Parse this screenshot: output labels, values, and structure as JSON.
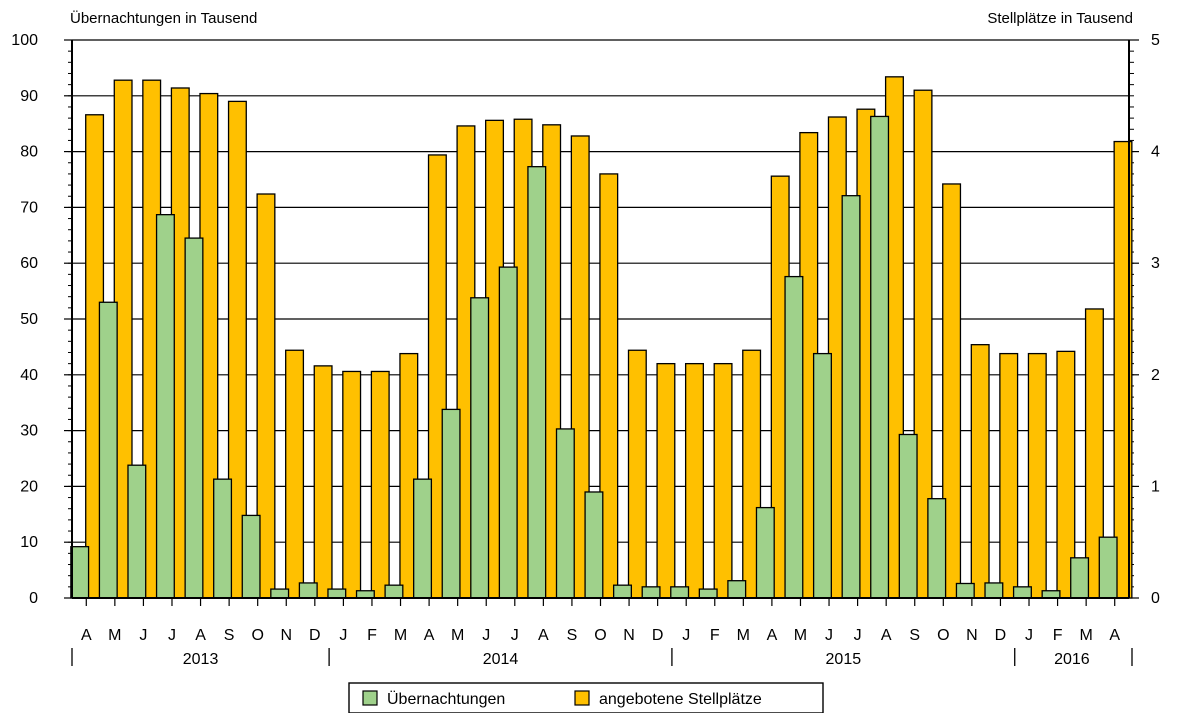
{
  "chart_data": {
    "type": "bar",
    "ylabel_left": "Übernachtungen in Tausend",
    "ylabel_right": "Stellplätze in Tausend",
    "ylim_left": [
      0,
      100
    ],
    "ylim_right": [
      0,
      5
    ],
    "yticks_left": [
      "0",
      "10",
      "20",
      "30",
      "40",
      "50",
      "60",
      "70",
      "80",
      "90",
      "100"
    ],
    "yticks_right": [
      "0",
      "1",
      "2",
      "3",
      "4",
      "5"
    ],
    "grid": true,
    "legend_position": "bottom-center",
    "categories": [
      "A",
      "M",
      "J",
      "J",
      "A",
      "S",
      "O",
      "N",
      "D",
      "J",
      "F",
      "M",
      "A",
      "M",
      "J",
      "J",
      "A",
      "S",
      "O",
      "N",
      "D",
      "J",
      "F",
      "M",
      "A",
      "M",
      "J",
      "J",
      "A",
      "S",
      "O",
      "N",
      "D",
      "J",
      "F",
      "M",
      "A"
    ],
    "years": [
      {
        "label": "2013",
        "start": 0,
        "end": 8
      },
      {
        "label": "2014",
        "start": 9,
        "end": 20
      },
      {
        "label": "2015",
        "start": 21,
        "end": 32
      },
      {
        "label": "2016",
        "start": 33,
        "end": 36
      }
    ],
    "series": [
      {
        "name": "Übernachtungen",
        "axis": "left",
        "color": "#9fd18b",
        "values": [
          9.2,
          53,
          23.8,
          68.7,
          64.5,
          21.3,
          14.8,
          1.6,
          2.7,
          1.6,
          1.3,
          2.3,
          21.3,
          33.8,
          53.8,
          59.3,
          77.3,
          30.3,
          19.0,
          2.3,
          2.0,
          2.0,
          1.6,
          3.1,
          16.2,
          57.6,
          43.8,
          72.1,
          86.3,
          29.3,
          17.8,
          2.6,
          2.7,
          2.0,
          1.3,
          7.2,
          10.9
        ]
      },
      {
        "name": "angebotene Stellplätze",
        "axis": "right",
        "color": "#ffc000",
        "values": [
          4.33,
          4.64,
          4.64,
          4.57,
          4.52,
          4.45,
          3.62,
          2.22,
          2.08,
          2.03,
          2.03,
          2.19,
          3.97,
          4.23,
          4.28,
          4.29,
          4.24,
          4.14,
          3.8,
          2.22,
          2.1,
          2.1,
          2.1,
          2.22,
          3.78,
          4.17,
          4.31,
          4.38,
          4.67,
          4.55,
          3.71,
          2.27,
          2.19,
          2.19,
          2.21,
          2.59,
          4.09
        ]
      }
    ]
  }
}
